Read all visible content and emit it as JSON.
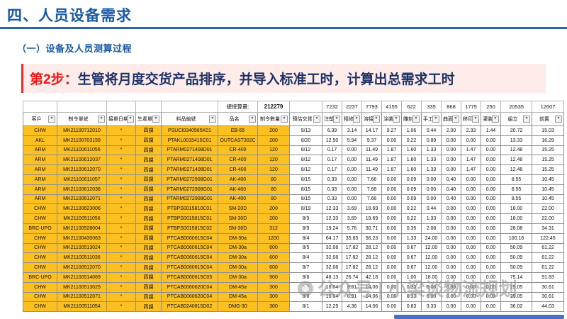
{
  "slide": {
    "title": "四、人员设备需求",
    "subtitle": "（一）设备及人员测算过程",
    "banner_step": "第2步：",
    "banner_text": "生管将月度交货产品排序，并导入标准工时，计算出总需求工时"
  },
  "watermark": {
    "text": "公众号 | 小梁谈物流规划",
    "logo": "camera-icon"
  },
  "colors": {
    "title_blue": "#1859a8",
    "banner_bg": "#fdecea",
    "banner_red": "#f01414",
    "banner_navy": "#1f3266",
    "cell_orange": "#fdc021",
    "accent_bar_blue": "#4472c4"
  },
  "table": {
    "summary_label": "總接算量:",
    "summary_value": "212279",
    "column_totals": [
      "7232",
      "2237",
      "7793",
      "4155",
      "622",
      "335",
      "868",
      "1775",
      "250",
      "20535",
      "12607"
    ],
    "headers": [
      "客戶",
      "制令單號",
      "接單日期",
      "生產單位",
      "料品編號",
      "品名",
      "制令數量",
      "預估交貨",
      "注塑",
      "精修",
      "溶接",
      "涂裝",
      "雕刻",
      "手工",
      "曲面",
      "移印",
      "灌裝",
      "組立",
      "前置"
    ],
    "filter_icon": "chevron-down-icon",
    "orange_header_indexes": [
      6
    ],
    "rows": [
      [
        "CHW",
        "MK21100712010",
        "*",
        "四課",
        "PSUCI0340565K01",
        "EB-65",
        "200",
        "9/13",
        "6.39",
        "3.14",
        "14.17",
        "9.27",
        "1.06",
        "0.44",
        "2.00",
        "2.33",
        "1.44",
        "20.72",
        "15.03"
      ],
      [
        "AKL",
        "MK21100703159",
        "*",
        "四課",
        "PTAKL0015415C01",
        "OUTCAST302C",
        "200",
        "8/20",
        "12.50",
        "5.94",
        "9.37",
        "0.00",
        "0.22",
        "0.89",
        "0.00",
        "0.00",
        "0.00",
        "13.33",
        "16.29"
      ],
      [
        "ARM",
        "MK21100611056",
        "*",
        "四課",
        "PTARM0271408D01",
        "CR-400",
        "120",
        "8/12",
        "0.17",
        "0.00",
        "11.49",
        "1.87",
        "1.60",
        "1.33",
        "0.00",
        "1.47",
        "0.00",
        "12.48",
        "15.25"
      ],
      [
        "ARM",
        "MK21100612037",
        "*",
        "四課",
        "PTARM0271408D01",
        "CR-400",
        "120",
        "8/12",
        "0.17",
        "0.00",
        "11.49",
        "1.87",
        "1.60",
        "1.33",
        "0.00",
        "1.47",
        "0.00",
        "12.48",
        "15.25"
      ],
      [
        "ARM",
        "MK21100612070",
        "*",
        "四課",
        "PTARM0271408D01",
        "CR-400",
        "120",
        "8/12",
        "0.17",
        "0.00",
        "11.49",
        "1.87",
        "1.60",
        "1.33",
        "0.00",
        "1.47",
        "0.00",
        "12.48",
        "15.25"
      ],
      [
        "ARM",
        "MK21100611057",
        "*",
        "四課",
        "PTARM0272908G01",
        "AK-400",
        "80",
        "8/15",
        "0.33",
        "0.00",
        "7.66",
        "0.00",
        "0.09",
        "0.00",
        "0.40",
        "0.00",
        "0.00",
        "8.55",
        "10.45"
      ],
      [
        "ARM",
        "MK21100612038",
        "*",
        "四課",
        "PTARM0272908G01",
        "AK-400",
        "80",
        "8/15",
        "0.33",
        "0.00",
        "7.66",
        "0.00",
        "0.09",
        "0.00",
        "0.40",
        "0.00",
        "0.00",
        "8.55",
        "10.45"
      ],
      [
        "ARM",
        "MK21100612071",
        "*",
        "四課",
        "PTARM0272908G01",
        "AK-400",
        "80",
        "8/15",
        "0.33",
        "0.00",
        "7.66",
        "0.00",
        "0.09",
        "0.00",
        "0.40",
        "0.00",
        "0.00",
        "8.55",
        "10.45"
      ],
      [
        "CHW",
        "MK21100623006",
        "*",
        "四課",
        "PTBPS0015810C01",
        "SM-20D",
        "200",
        "8/19",
        "12.33",
        "3.69",
        "19.69",
        "0.00",
        "0.22",
        "0.44",
        "0.00",
        "0.00",
        "0.00",
        "18.00",
        "22.00"
      ],
      [
        "CHW",
        "MK21100511056",
        "*",
        "四課",
        "PTBPS0015815C01",
        "SM-30D",
        "200",
        "8/9",
        "12.33",
        "3.69",
        "19.69",
        "0.00",
        "0.22",
        "1.33",
        "0.00",
        "0.00",
        "0.00",
        "18.00",
        "22.00"
      ],
      [
        "BRC-UPO",
        "MK21100528004",
        "*",
        "四課",
        "PTBPS0015815C02",
        "SM-30D",
        "312",
        "8/9",
        "19.24",
        "5.76",
        "30.71",
        "0.00",
        "0.35",
        "2.08",
        "0.00",
        "0.00",
        "0.00",
        "28.08",
        "34.31"
      ],
      [
        "CHW",
        "MK21100430063",
        "*",
        "四課",
        "PTCAB0060615C04",
        "DM-30a",
        "1200",
        "8/4",
        "64.17",
        "35.65",
        "56.23",
        "0.00",
        "1.33",
        "24.00",
        "0.00",
        "0.00",
        "0.00",
        "100.18",
        "122.45"
      ],
      [
        "CHW",
        "MK21100513024",
        "*",
        "四課",
        "PTCAB0060615C04",
        "DM-30a",
        "600",
        "8/5",
        "32.08",
        "17.82",
        "28.12",
        "0.00",
        "0.67",
        "12.00",
        "0.00",
        "0.00",
        "0.00",
        "50.09",
        "61.22"
      ],
      [
        "CHW",
        "MK21100511036",
        "*",
        "四課",
        "PTCAB0060615C04",
        "DM-30a",
        "600",
        "8/4",
        "32.08",
        "17.82",
        "28.12",
        "0.00",
        "0.67",
        "12.00",
        "0.00",
        "0.00",
        "0.00",
        "50.09",
        "61.22"
      ],
      [
        "CHW",
        "MK21100512070",
        "*",
        "四課",
        "PTCAB0060615C04",
        "DM-30a",
        "600",
        "8/7",
        "32.08",
        "17.82",
        "28.12",
        "0.00",
        "0.67",
        "12.00",
        "0.00",
        "0.00",
        "0.00",
        "50.09",
        "61.22"
      ],
      [
        "BRC-UPO",
        "MK21100514069",
        "*",
        "四課",
        "PTCAB0060615C05",
        "DM-30a",
        "900",
        "8/6",
        "48.13",
        "26.74",
        "42.18",
        "0.00",
        "1.00",
        "18.00",
        "0.00",
        "0.00",
        "0.00",
        "75.14",
        "91.83"
      ],
      [
        "CHW",
        "MK21100513025",
        "*",
        "四課",
        "PTCAB0060620C04",
        "DM-45a",
        "300",
        "8/8",
        "16.04",
        "8.91",
        "14.06",
        "0.00",
        "0.33",
        "6.00",
        "0.00",
        "0.00",
        "0.00",
        "25.05",
        "30.61"
      ],
      [
        "CHW",
        "MK21100512071",
        "*",
        "四課",
        "PTCAB0060620C04",
        "DM-45a",
        "300",
        "8/8",
        "16.04",
        "8.91",
        "14.06",
        "0.00",
        "0.33",
        "6.00",
        "0.00",
        "0.00",
        "0.00",
        "25.05",
        "30.61"
      ],
      [
        "CHW",
        "MK21100511054",
        "*",
        "四課",
        "PTCAB0240815D02",
        "DMG-30",
        "300",
        "8/1",
        "12.29",
        "4.36",
        "14.06",
        "0.00",
        "0.83",
        "3.33",
        "0.00",
        "0.00",
        "0.00",
        "36.02",
        "44.03"
      ]
    ]
  }
}
